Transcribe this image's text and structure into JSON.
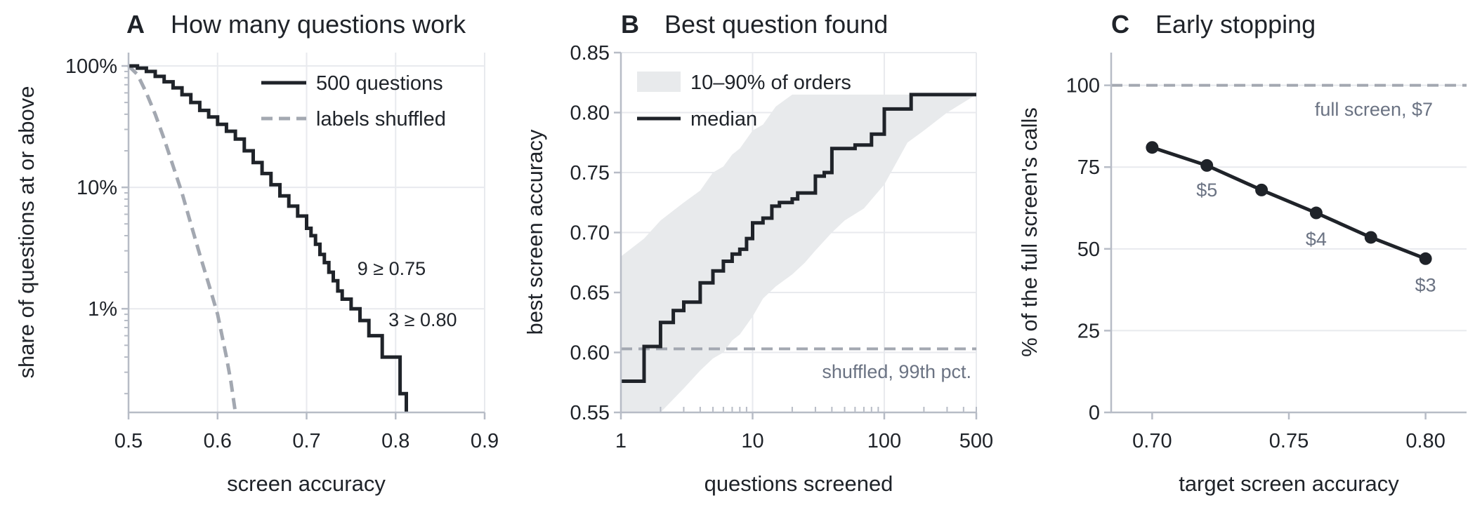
{
  "colors": {
    "main_line": "#1f2329",
    "shuffled_line": "#a3a8b1",
    "band": "#e8eaec",
    "grid": "#e8eaee",
    "axis": "#b7bcc6",
    "annotation_gray": "#6b7383"
  },
  "chart_data": [
    {
      "type": "line",
      "panel_letter": "A",
      "title": "How many questions work",
      "xlabel": "screen accuracy",
      "ylabel": "share of questions at or above",
      "xlim": [
        0.5,
        0.9
      ],
      "ylim": [
        0.0014,
        1.0
      ],
      "y_scale": "log",
      "x_ticks": [
        0.5,
        0.6,
        0.7,
        0.8,
        0.9
      ],
      "x_tick_labels": [
        "0.5",
        "0.6",
        "0.7",
        "0.8",
        "0.9"
      ],
      "y_ticks": [
        1.0,
        0.1,
        0.01
      ],
      "y_tick_labels": [
        "100%",
        "10%",
        "1%"
      ],
      "grid": true,
      "legend_position": "top-right",
      "series": [
        {
          "name": "500 questions",
          "style": "solid",
          "x": [
            0.5,
            0.51,
            0.52,
            0.53,
            0.54,
            0.55,
            0.56,
            0.57,
            0.58,
            0.59,
            0.6,
            0.61,
            0.62,
            0.63,
            0.64,
            0.65,
            0.66,
            0.67,
            0.68,
            0.69,
            0.7,
            0.705,
            0.71,
            0.715,
            0.72,
            0.725,
            0.73,
            0.735,
            0.74,
            0.745,
            0.75,
            0.755,
            0.76,
            0.765,
            0.77,
            0.775,
            0.78,
            0.785,
            0.79,
            0.795,
            0.8,
            0.805,
            0.81,
            0.812
          ],
          "y": [
            1.0,
            0.96,
            0.9,
            0.82,
            0.74,
            0.66,
            0.58,
            0.5,
            0.43,
            0.38,
            0.33,
            0.29,
            0.25,
            0.2,
            0.16,
            0.13,
            0.105,
            0.085,
            0.07,
            0.058,
            0.046,
            0.04,
            0.034,
            0.028,
            0.024,
            0.02,
            0.017,
            0.014,
            0.012,
            0.012,
            0.01,
            0.01,
            0.008,
            0.008,
            0.006,
            0.006,
            0.006,
            0.004,
            0.004,
            0.004,
            0.004,
            0.002,
            0.002,
            0.0014
          ]
        },
        {
          "name": "labels shuffled",
          "style": "dashed",
          "x": [
            0.5,
            0.51,
            0.52,
            0.53,
            0.54,
            0.55,
            0.56,
            0.57,
            0.58,
            0.59,
            0.6,
            0.605,
            0.61,
            0.615,
            0.62
          ],
          "y": [
            1.0,
            0.85,
            0.6,
            0.4,
            0.25,
            0.15,
            0.09,
            0.05,
            0.028,
            0.016,
            0.009,
            0.006,
            0.004,
            0.0025,
            0.0014
          ]
        }
      ],
      "annotations": [
        {
          "text": "9 ≥ 0.75",
          "x": 0.757,
          "y": 0.019
        },
        {
          "text": "3 ≥ 0.80",
          "x": 0.792,
          "y": 0.0072
        }
      ]
    },
    {
      "type": "area",
      "panel_letter": "B",
      "title": "Best question found",
      "xlabel": "questions screened",
      "ylabel": "best screen accuracy",
      "xlim": [
        1,
        500
      ],
      "ylim": [
        0.55,
        0.85
      ],
      "x_scale": "log",
      "x_ticks": [
        1,
        10,
        100,
        500
      ],
      "x_tick_labels": [
        "1",
        "10",
        "100",
        "500"
      ],
      "y_ticks": [
        0.55,
        0.6,
        0.65,
        0.7,
        0.75,
        0.8,
        0.85
      ],
      "y_tick_labels": [
        "0.55",
        "0.60",
        "0.65",
        "0.70",
        "0.75",
        "0.80",
        "0.85"
      ],
      "grid": true,
      "legend_position": "top-left",
      "band": {
        "name": "10–90% of orders",
        "x": [
          1,
          1.5,
          2,
          3,
          4,
          5,
          6,
          7,
          8,
          10,
          12,
          15,
          20,
          25,
          30,
          40,
          50,
          70,
          100,
          150,
          200,
          300,
          500
        ],
        "lower": [
          0.55,
          0.55,
          0.55,
          0.57,
          0.585,
          0.595,
          0.6,
          0.61,
          0.615,
          0.63,
          0.645,
          0.655,
          0.665,
          0.675,
          0.685,
          0.7,
          0.71,
          0.72,
          0.74,
          0.775,
          0.785,
          0.8,
          0.815
        ],
        "upper": [
          0.68,
          0.695,
          0.71,
          0.725,
          0.735,
          0.75,
          0.755,
          0.765,
          0.77,
          0.785,
          0.79,
          0.805,
          0.815,
          0.815,
          0.815,
          0.815,
          0.815,
          0.815,
          0.815,
          0.815,
          0.815,
          0.815,
          0.815
        ]
      },
      "series": [
        {
          "name": "median",
          "style": "solid",
          "x": [
            1,
            1.5,
            2,
            2.5,
            3,
            4,
            5,
            6,
            7,
            8,
            9,
            10,
            12,
            14,
            16,
            20,
            22,
            25,
            30,
            35,
            40,
            50,
            60,
            70,
            80,
            90,
            100,
            120,
            140,
            160,
            200,
            300,
            500
          ],
          "y": [
            0.576,
            0.605,
            0.625,
            0.635,
            0.642,
            0.658,
            0.668,
            0.676,
            0.682,
            0.686,
            0.695,
            0.708,
            0.712,
            0.722,
            0.725,
            0.728,
            0.733,
            0.733,
            0.747,
            0.75,
            0.77,
            0.77,
            0.773,
            0.773,
            0.782,
            0.782,
            0.803,
            0.803,
            0.803,
            0.815,
            0.815,
            0.815,
            0.815
          ]
        }
      ],
      "reference_line": {
        "name": "shuffled, 99th pct.",
        "y": 0.603,
        "style": "dashed"
      }
    },
    {
      "type": "line",
      "panel_letter": "C",
      "title": "Early stopping",
      "xlabel": "target screen accuracy",
      "ylabel": "% of the full screen's calls",
      "xlim": [
        0.685,
        0.815
      ],
      "ylim": [
        0,
        110
      ],
      "x_ticks": [
        0.7,
        0.75,
        0.8
      ],
      "x_tick_labels": [
        "0.70",
        "0.75",
        "0.80"
      ],
      "y_ticks": [
        0,
        25,
        50,
        75,
        100
      ],
      "y_tick_labels": [
        "0",
        "25",
        "50",
        "75",
        "100"
      ],
      "grid": true,
      "series": [
        {
          "name": "",
          "style": "solid-markers",
          "x": [
            0.7,
            0.72,
            0.74,
            0.76,
            0.78,
            0.8
          ],
          "y": [
            81,
            75.5,
            68,
            61,
            53.5,
            47
          ]
        }
      ],
      "reference_line": {
        "name": "full screen, $7",
        "y": 100,
        "style": "dashed"
      },
      "annotations": [
        {
          "text": "$5",
          "x": 0.72,
          "y": 66
        },
        {
          "text": "$4",
          "x": 0.76,
          "y": 51
        },
        {
          "text": "$3",
          "x": 0.8,
          "y": 37
        }
      ]
    }
  ]
}
